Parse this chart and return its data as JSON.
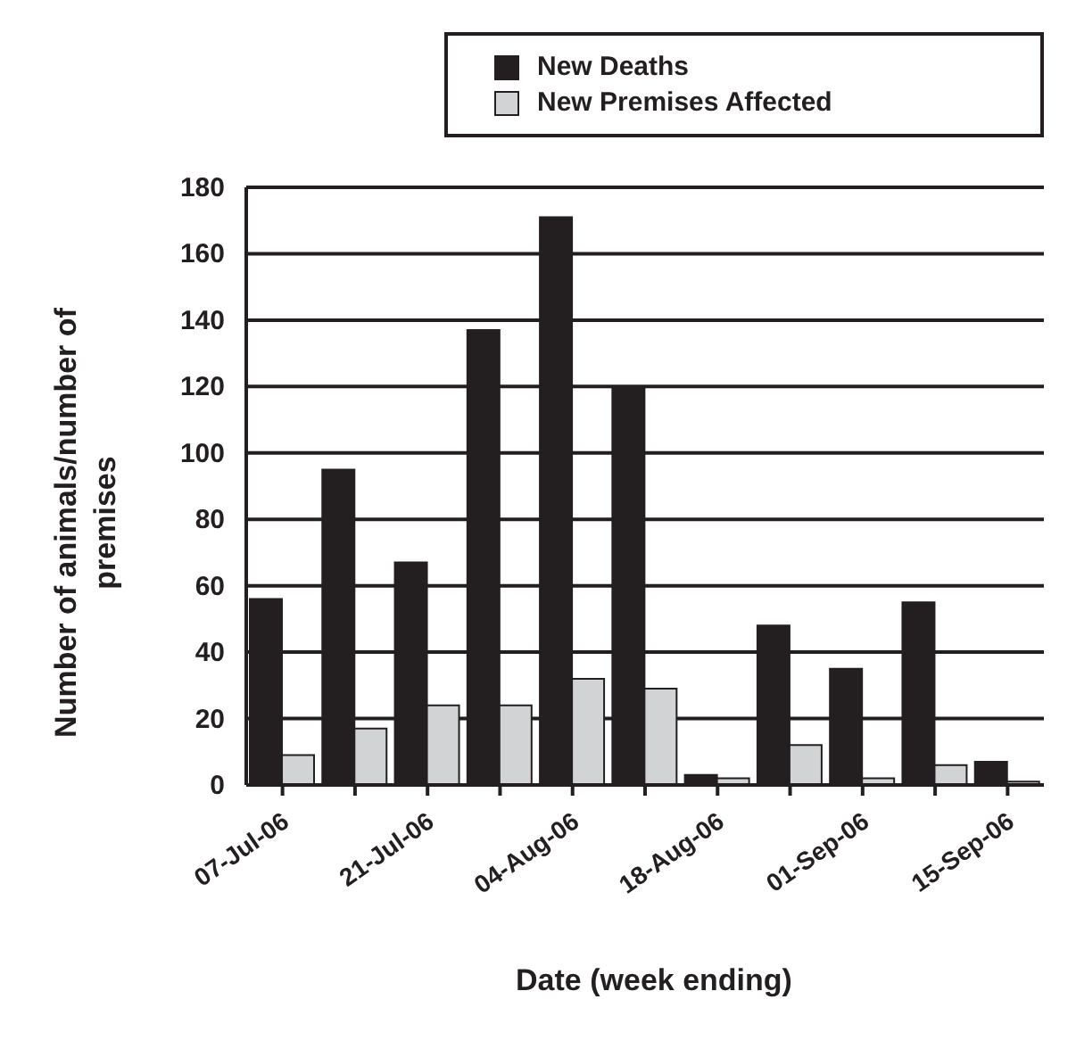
{
  "chart_data": {
    "type": "bar",
    "xlabel": "Date (week ending)",
    "ylabel": "Number of animals/number of premises",
    "categories": [
      "07-Jul-06",
      null,
      "21-Jul-06",
      null,
      "04-Aug-06",
      null,
      "18-Aug-06",
      null,
      "01-Sep-06",
      null,
      "15-Sep-06"
    ],
    "series": [
      {
        "name": "New Deaths",
        "color": "#231f20",
        "values": [
          56,
          95,
          67,
          137,
          171,
          120,
          3,
          48,
          35,
          55,
          7
        ]
      },
      {
        "name": "New Premises Affected",
        "color": "#d1d3d4",
        "values": [
          9,
          17,
          24,
          24,
          32,
          29,
          2,
          12,
          2,
          6,
          1
        ]
      }
    ],
    "ylim": [
      0,
      180
    ],
    "yticks": [
      0,
      20,
      40,
      60,
      80,
      100,
      120,
      140,
      160,
      180
    ],
    "grid": "y",
    "legend": "top right"
  }
}
